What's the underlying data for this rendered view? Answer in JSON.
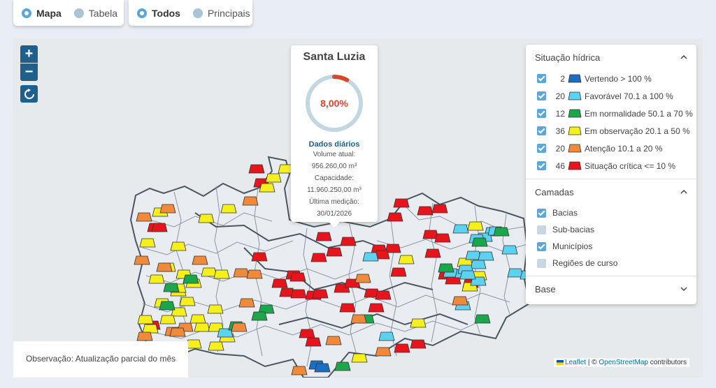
{
  "view_toggle": {
    "options": [
      "Mapa",
      "Tabela"
    ],
    "selected": "Mapa"
  },
  "filter_toggle": {
    "options": [
      "Todos",
      "Principais"
    ],
    "selected": "Todos"
  },
  "popup": {
    "title": "Santa Luzia",
    "percent": "8,00%",
    "percent_value": 8.0,
    "daily_label": "Dados diários",
    "volume_label": "Volume atual:",
    "volume_value": "956.260,00 m³",
    "capacity_label": "Capacidade:",
    "capacity_value": "11.960.250,00 m³",
    "last_label": "Última medição:",
    "last_value": "30/01/2026"
  },
  "observation": "Observação: Atualização parcial do mês",
  "attribution": {
    "leaflet": "Leaflet",
    "sep": " | © ",
    "osm": "OpenStreetMap",
    "rest": " contributors"
  },
  "legend": {
    "situation_title": "Situação hídrica",
    "situation": [
      {
        "count": "2",
        "label": "Vertendo > 100 %",
        "color": "#1a6ec4"
      },
      {
        "count": "20",
        "label": "Favorável 70.1 a 100 %",
        "color": "#5bd3f0"
      },
      {
        "count": "12",
        "label": "Em normalidade 50.1 a 70 %",
        "color": "#1aa64b"
      },
      {
        "count": "36",
        "label": "Em observação 20.1 a 50 %",
        "color": "#f5f01c"
      },
      {
        "count": "20",
        "label": "Atenção 10.1 a 20 %",
        "color": "#f08a3a"
      },
      {
        "count": "46",
        "label": "Situação crítica <= 10 %",
        "color": "#e8141c"
      }
    ],
    "layers_title": "Camadas",
    "layers": [
      {
        "label": "Bacias",
        "checked": true
      },
      {
        "label": "Sub-bacias",
        "checked": false
      },
      {
        "label": "Municípios",
        "checked": true
      },
      {
        "label": "Regiões de curso",
        "checked": false
      }
    ],
    "base_title": "Base"
  }
}
